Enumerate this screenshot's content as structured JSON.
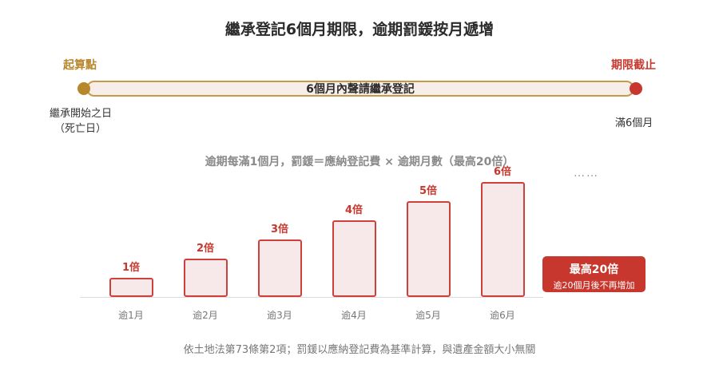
{
  "title": "繼承登記6個月期限，逾期罰鍰按月遞增",
  "timeline": {
    "start_label": "起算點",
    "end_label": "期限截止",
    "bar_text": "6個月內聲請繼承登記",
    "start_note_line1": "繼承開始之日",
    "start_note_line2": "（死亡日）",
    "end_note": "滿6個月",
    "start_color": "#b8862b",
    "end_color": "#c8372d"
  },
  "formula": "逾期每滿1個月，罰鍰＝應納登記費 × 逾期月數（最高20倍）",
  "chart_data": {
    "type": "bar",
    "categories": [
      "逾1月",
      "逾2月",
      "逾3月",
      "逾4月",
      "逾5月",
      "逾6月"
    ],
    "values": [
      1,
      2,
      3,
      4,
      5,
      6
    ],
    "value_labels": [
      "1倍",
      "2倍",
      "3倍",
      "4倍",
      "5倍",
      "6倍"
    ],
    "bar_color": "#d0403a"
  },
  "ellipsis": "……",
  "max_box": {
    "title": "最高20倍",
    "subtitle": "逾20個月後不再增加"
  },
  "footnote": "依土地法第73條第2項；罰鍰以應納登記費為基準計算，與遺產金額大小無關"
}
